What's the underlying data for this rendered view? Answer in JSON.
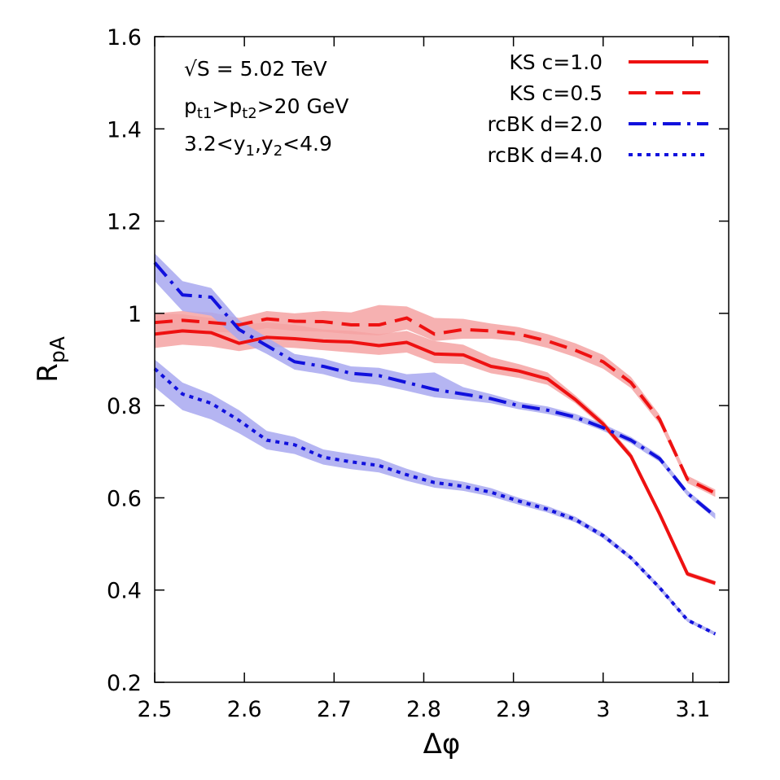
{
  "chart_data": {
    "type": "line",
    "xlabel": "Δφ",
    "ylabel": {
      "main": "R",
      "sub": "pA"
    },
    "xlim": [
      2.5,
      3.14
    ],
    "ylim": [
      0.2,
      1.6
    ],
    "xticks": [
      2.5,
      2.6,
      2.7,
      2.8,
      2.9,
      3.0,
      3.1
    ],
    "xtick_labels": [
      "2.5",
      "2.6",
      "2.7",
      "2.8",
      "2.9",
      "3",
      "3.1"
    ],
    "yticks": [
      0.2,
      0.4,
      0.6,
      0.8,
      1.0,
      1.2,
      1.4,
      1.6
    ],
    "ytick_labels": [
      "0.2",
      "0.4",
      "0.6",
      "0.8",
      "1",
      "1.2",
      "1.4",
      "1.6"
    ],
    "grid": false,
    "legend_position": "top-right",
    "annotations": [
      {
        "text": "√S = 5.02 TeV"
      },
      {
        "parts": [
          {
            "t": "p",
            "s": "n"
          },
          {
            "t": "t1",
            "s": "sub"
          },
          {
            "t": ">p",
            "s": "n"
          },
          {
            "t": "t2",
            "s": "sub"
          },
          {
            "t": ">20 GeV",
            "s": "n"
          }
        ]
      },
      {
        "parts": [
          {
            "t": "3.2<y",
            "s": "n"
          },
          {
            "t": "1",
            "s": "sub"
          },
          {
            "t": ",y",
            "s": "n"
          },
          {
            "t": "2",
            "s": "sub"
          },
          {
            "t": "<4.9",
            "s": "n"
          }
        ]
      }
    ],
    "x": [
      2.5,
      2.531,
      2.563,
      2.594,
      2.625,
      2.656,
      2.688,
      2.719,
      2.75,
      2.781,
      2.812,
      2.844,
      2.875,
      2.906,
      2.938,
      2.969,
      3.0,
      3.031,
      3.063,
      3.094,
      3.125
    ],
    "series": [
      {
        "name": "KS c=1.0",
        "color": "#ee1111",
        "dash": "solid",
        "band_color": "#f5a3a3",
        "values": [
          0.955,
          0.962,
          0.958,
          0.935,
          0.948,
          0.945,
          0.94,
          0.938,
          0.93,
          0.937,
          0.912,
          0.91,
          0.885,
          0.875,
          0.858,
          0.813,
          0.76,
          0.69,
          0.565,
          0.435,
          0.415
        ],
        "band_low": [
          0.925,
          0.932,
          0.928,
          0.918,
          0.928,
          0.925,
          0.92,
          0.915,
          0.91,
          0.915,
          0.892,
          0.89,
          0.87,
          0.86,
          0.845,
          0.805,
          0.752,
          0.684,
          0.56,
          0.43,
          0.41
        ],
        "band_high": [
          1.0,
          0.998,
          0.99,
          0.975,
          0.98,
          0.975,
          0.965,
          0.962,
          0.955,
          0.962,
          0.94,
          0.932,
          0.905,
          0.89,
          0.872,
          0.822,
          0.768,
          0.698,
          0.572,
          0.44,
          0.42
        ]
      },
      {
        "name": "KS c=0.5",
        "color": "#ee1111",
        "dash": "dashed",
        "band_color": "#f5a3a3",
        "values": [
          0.98,
          0.985,
          0.98,
          0.975,
          0.988,
          0.983,
          0.982,
          0.975,
          0.975,
          0.99,
          0.955,
          0.965,
          0.962,
          0.955,
          0.94,
          0.92,
          0.895,
          0.85,
          0.77,
          0.64,
          0.61
        ],
        "band_low": [
          0.955,
          0.96,
          0.96,
          0.958,
          0.968,
          0.962,
          0.96,
          0.955,
          0.952,
          0.965,
          0.94,
          0.945,
          0.945,
          0.94,
          0.925,
          0.905,
          0.88,
          0.838,
          0.76,
          0.632,
          0.602
        ],
        "band_high": [
          1.0,
          1.005,
          1.002,
          0.99,
          1.005,
          1.0,
          1.005,
          1.002,
          1.018,
          1.015,
          0.99,
          0.988,
          0.978,
          0.97,
          0.955,
          0.935,
          0.91,
          0.862,
          0.78,
          0.648,
          0.618
        ]
      },
      {
        "name": "rcBK d=2.0",
        "color": "#1111dd",
        "dash": "dashdot",
        "band_color": "#a8a8f0",
        "values": [
          1.11,
          1.04,
          1.035,
          0.965,
          0.93,
          0.895,
          0.885,
          0.87,
          0.865,
          0.85,
          0.835,
          0.825,
          0.815,
          0.8,
          0.79,
          0.775,
          0.752,
          0.725,
          0.685,
          0.61,
          0.56
        ],
        "band_low": [
          1.07,
          1.005,
          0.995,
          0.942,
          0.912,
          0.878,
          0.868,
          0.852,
          0.845,
          0.832,
          0.818,
          0.812,
          0.805,
          0.792,
          0.782,
          0.768,
          0.745,
          0.718,
          0.678,
          0.604,
          0.554
        ],
        "band_high": [
          1.13,
          1.07,
          1.055,
          0.985,
          0.948,
          0.912,
          0.902,
          0.885,
          0.882,
          0.868,
          0.872,
          0.84,
          0.825,
          0.808,
          0.798,
          0.782,
          0.76,
          0.732,
          0.692,
          0.616,
          0.566
        ]
      },
      {
        "name": "rcBK d=4.0",
        "color": "#1111dd",
        "dash": "dotted",
        "band_color": "#a8a8f0",
        "values": [
          0.88,
          0.825,
          0.805,
          0.768,
          0.725,
          0.715,
          0.688,
          0.678,
          0.67,
          0.65,
          0.633,
          0.625,
          0.612,
          0.593,
          0.575,
          0.553,
          0.518,
          0.47,
          0.405,
          0.335,
          0.305
        ],
        "band_low": [
          0.84,
          0.79,
          0.77,
          0.74,
          0.705,
          0.695,
          0.672,
          0.662,
          0.655,
          0.637,
          0.622,
          0.615,
          0.603,
          0.585,
          0.568,
          0.547,
          0.512,
          0.465,
          0.4,
          0.331,
          0.301
        ],
        "band_high": [
          0.9,
          0.85,
          0.825,
          0.79,
          0.745,
          0.732,
          0.705,
          0.695,
          0.685,
          0.663,
          0.645,
          0.635,
          0.621,
          0.6,
          0.582,
          0.559,
          0.524,
          0.475,
          0.41,
          0.339,
          0.309
        ]
      }
    ]
  }
}
